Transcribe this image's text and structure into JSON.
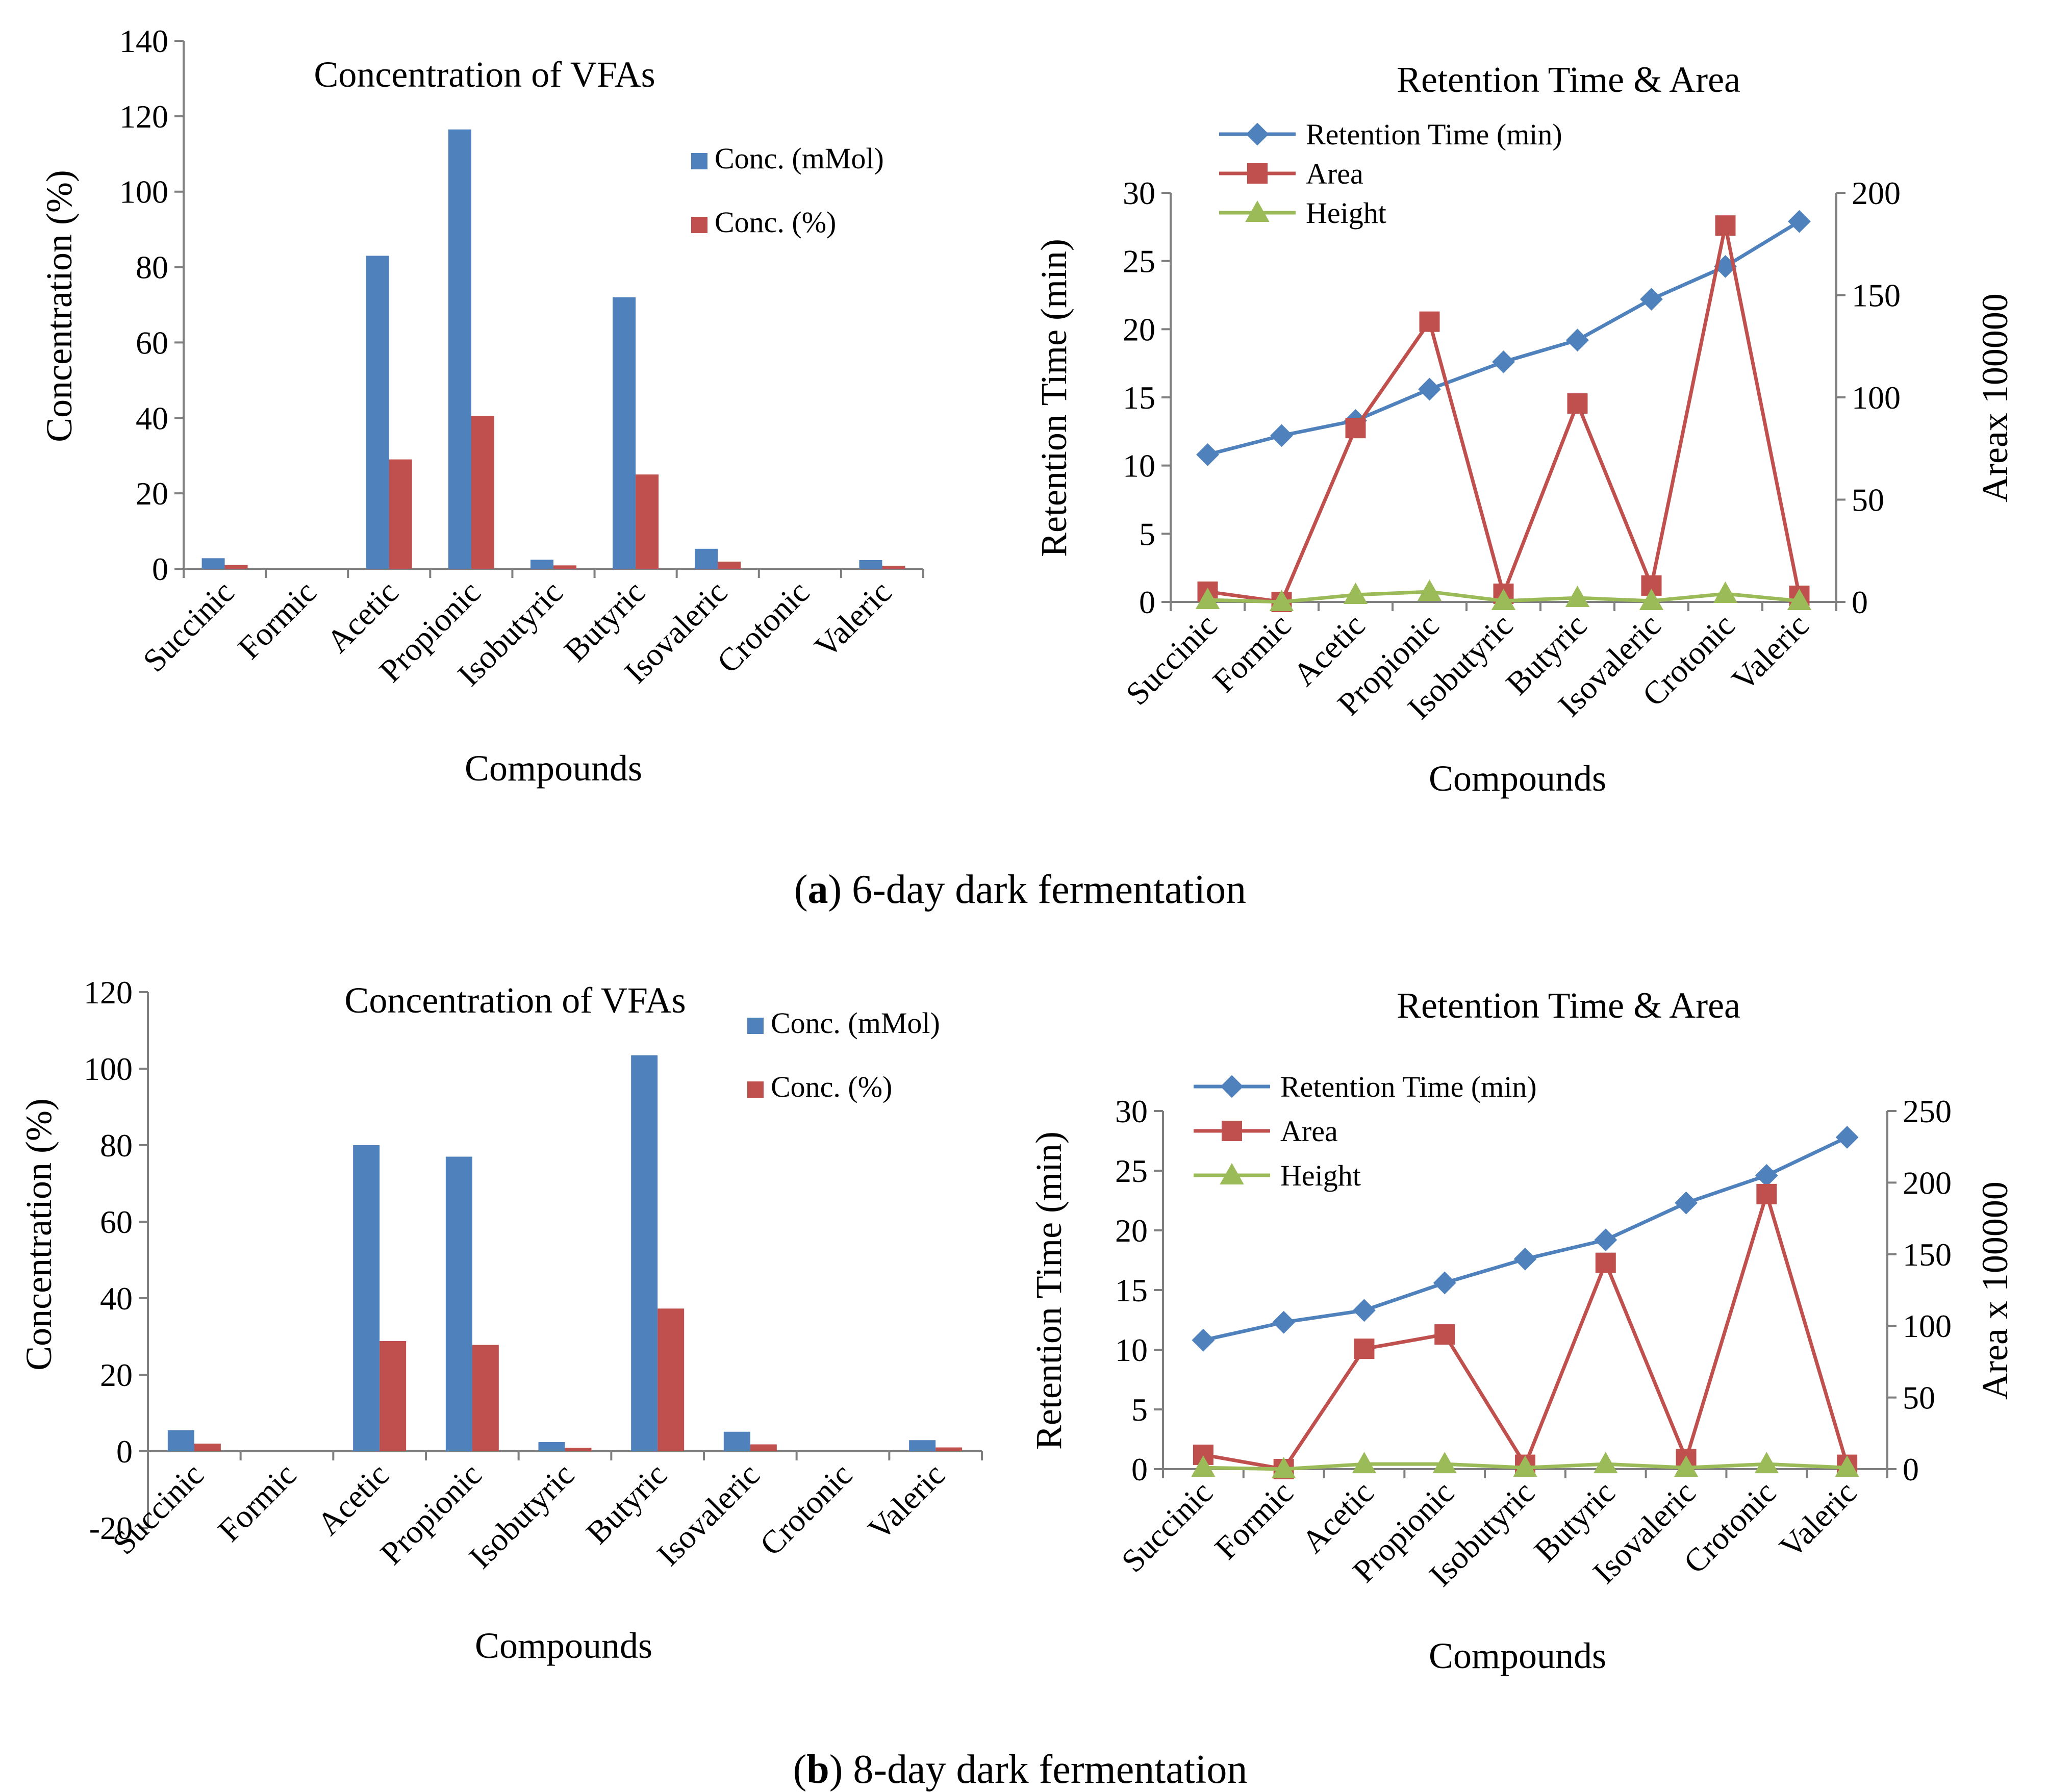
{
  "figure": {
    "caption_a": {
      "letter": "a",
      "text": ") 6-day dark fermentation"
    },
    "caption_b": {
      "letter": "b",
      "text": ") 8-day dark fermentation"
    }
  },
  "colors": {
    "blue": "#4f81bd",
    "red": "#c0504d",
    "green": "#9bbb59",
    "axis": "#7f7f7f"
  },
  "chart_data": [
    {
      "id": "a-bar",
      "type": "bar",
      "title": "Concentration of VFAs",
      "xlabel": "Compounds",
      "ylabel": "Concentration (%)",
      "ylim": [
        0,
        140
      ],
      "yticks": [
        0,
        20,
        40,
        60,
        80,
        100,
        120,
        140
      ],
      "categories": [
        "Succinic",
        "Formic",
        "Acetic",
        "Propionic",
        "Isobutyric",
        "Butyric",
        "Isovaleric",
        "Crotonic",
        "Valeric"
      ],
      "series": [
        {
          "name": "Conc. (mMol)",
          "color": "#4f81bd",
          "values": [
            2.8,
            0,
            83,
            116.5,
            2.4,
            72,
            5.3,
            0,
            2.3
          ]
        },
        {
          "name": "Conc. (%)",
          "color": "#c0504d",
          "values": [
            1.0,
            0,
            29,
            40.5,
            0.9,
            25,
            1.9,
            0,
            0.8
          ]
        }
      ],
      "legend": "top-right"
    },
    {
      "id": "a-line",
      "type": "line",
      "title": "Retention Time & Area",
      "xlabel": "Compounds",
      "ylabel": "Retention Time (min)",
      "y2label": "Areax 100000",
      "ylim": [
        0,
        30
      ],
      "yticks": [
        0,
        5,
        10,
        15,
        20,
        25,
        30
      ],
      "y2lim": [
        0,
        200
      ],
      "y2ticks": [
        0,
        50,
        100,
        150,
        200
      ],
      "categories": [
        "Succinic",
        "Formic",
        "Acetic",
        "Propionic",
        "Isobutyric",
        "Butyric",
        "Isovaleric",
        "Crotonic",
        "Valeric"
      ],
      "series": [
        {
          "name": "Retention Time (min)",
          "color": "#4f81bd",
          "marker": "diamond",
          "axis": "left",
          "values": [
            10.8,
            12.2,
            13.3,
            15.6,
            17.6,
            19.2,
            22.2,
            24.6,
            27.9
          ]
        },
        {
          "name": "Area",
          "color": "#c0504d",
          "marker": "square",
          "axis": "right",
          "values": [
            5,
            0,
            85,
            137,
            4,
            97,
            8,
            184,
            3
          ]
        },
        {
          "name": "Height",
          "color": "#9bbb59",
          "marker": "triangle",
          "axis": "right",
          "values": [
            1,
            0,
            3.5,
            5,
            0.5,
            2,
            0.5,
            4,
            0.5
          ]
        }
      ],
      "legend": "top-left"
    },
    {
      "id": "b-bar",
      "type": "bar",
      "title": "Concentration of VFAs",
      "xlabel": "Compounds",
      "ylabel": "Concentration (%)",
      "ylim": [
        -20,
        120
      ],
      "yticks": [
        -20,
        0,
        20,
        40,
        60,
        80,
        100,
        120
      ],
      "categories": [
        "Succinic",
        "Formic",
        "Acetic",
        "Propionic",
        "Isobutyric",
        "Butyric",
        "Isovaleric",
        "Crotonic",
        "Valeric"
      ],
      "series": [
        {
          "name": "Conc. (mMol)",
          "color": "#4f81bd",
          "values": [
            5.5,
            0,
            80,
            77,
            2.4,
            103.5,
            5.1,
            0,
            2.9
          ]
        },
        {
          "name": "Conc. (%)",
          "color": "#c0504d",
          "values": [
            2.0,
            0,
            28.8,
            27.8,
            0.9,
            37.3,
            1.8,
            0,
            1.0
          ]
        }
      ],
      "legend": "top-right"
    },
    {
      "id": "b-line",
      "type": "line",
      "title": "Retention Time & Area",
      "xlabel": "Compounds",
      "ylabel": "Retention Time (min)",
      "y2label": "Area  x 100000",
      "ylim": [
        0,
        30
      ],
      "yticks": [
        0,
        5,
        10,
        15,
        20,
        25,
        30
      ],
      "y2lim": [
        0,
        250
      ],
      "y2ticks": [
        0,
        50,
        100,
        150,
        200,
        250
      ],
      "categories": [
        "Succinic",
        "Formic",
        "Acetic",
        "Propionic",
        "Isobutyric",
        "Butyric",
        "Isovaleric",
        "Crotonic",
        "Valeric"
      ],
      "series": [
        {
          "name": "Retention Time (min)",
          "color": "#4f81bd",
          "marker": "diamond",
          "axis": "left",
          "values": [
            10.8,
            12.3,
            13.3,
            15.6,
            17.6,
            19.2,
            22.3,
            24.6,
            27.8
          ]
        },
        {
          "name": "Area",
          "color": "#c0504d",
          "marker": "square",
          "axis": "right",
          "values": [
            10,
            0,
            84,
            94,
            3,
            144,
            7,
            192,
            3
          ]
        },
        {
          "name": "Height",
          "color": "#9bbb59",
          "marker": "triangle",
          "axis": "right",
          "values": [
            1,
            0,
            3.5,
            3.5,
            1,
            3.5,
            1,
            3.5,
            1
          ]
        }
      ],
      "legend": "top-left"
    }
  ]
}
